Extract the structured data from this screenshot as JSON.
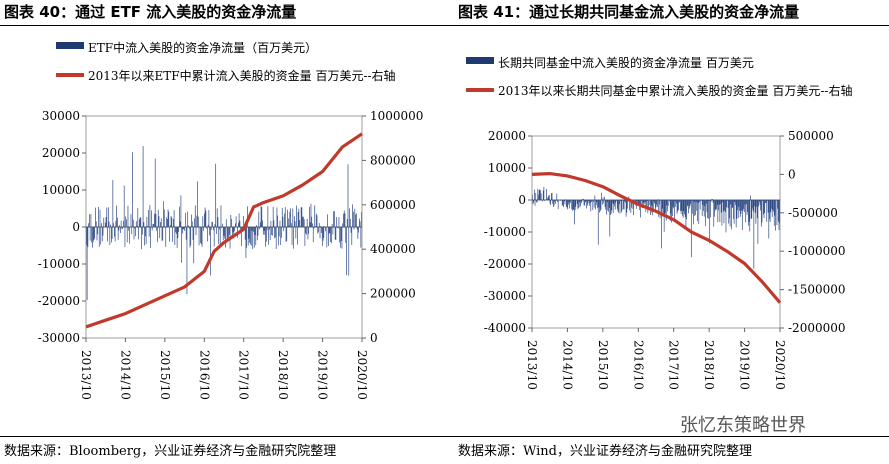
{
  "header": {
    "left_title": "图表 40：通过 ETF 流入美股的资金净流量",
    "right_title": "图表 41：通过长期共同基金流入美股的资金净流量"
  },
  "footer": {
    "left_source": "数据来源：Bloomberg，兴业证券经济与金融研究院整理",
    "right_source": "数据来源：Wind，兴业证券经济与金融研究院整理",
    "watermark": "张忆东策略世界"
  },
  "chart_data": [
    {
      "type": "bar+line",
      "legend": [
        {
          "label": "ETF中流入美股的资金净流量（百万美元）",
          "color": "#1f3a6e"
        },
        {
          "label": "2013年以来ETF中累计流入美股的资金量 百万美元--右轴",
          "color": "#c0392b"
        }
      ],
      "ylim_left": [
        -30000,
        30000
      ],
      "yticks_left": [
        "30000",
        "20000",
        "10000",
        "0",
        "-10000",
        "-20000",
        "-30000"
      ],
      "ylim_right": [
        0,
        1000000
      ],
      "yticks_right": [
        "1000000",
        "800000",
        "600000",
        "400000",
        "200000",
        "0"
      ],
      "xticks": [
        "2013/10",
        "2014/10",
        "2015/10",
        "2016/10",
        "2017/10",
        "2018/10",
        "2019/10",
        "2020/10"
      ],
      "x_range": [
        "2013/10",
        "2020/10"
      ],
      "cumulative_line": [
        {
          "x": "2013/10",
          "y": 50000
        },
        {
          "x": "2014/04",
          "y": 80000
        },
        {
          "x": "2014/10",
          "y": 110000
        },
        {
          "x": "2015/04",
          "y": 150000
        },
        {
          "x": "2015/10",
          "y": 190000
        },
        {
          "x": "2016/04",
          "y": 230000
        },
        {
          "x": "2016/10",
          "y": 300000
        },
        {
          "x": "2017/01",
          "y": 390000
        },
        {
          "x": "2017/04",
          "y": 430000
        },
        {
          "x": "2017/10",
          "y": 490000
        },
        {
          "x": "2018/01",
          "y": 590000
        },
        {
          "x": "2018/04",
          "y": 610000
        },
        {
          "x": "2018/10",
          "y": 640000
        },
        {
          "x": "2019/04",
          "y": 690000
        },
        {
          "x": "2019/10",
          "y": 750000
        },
        {
          "x": "2020/04",
          "y": 860000
        },
        {
          "x": "2020/10",
          "y": 920000
        }
      ],
      "flow_bars_note": "weekly net flows fluctuating roughly between -22000 and 26000"
    },
    {
      "type": "bar+line",
      "legend": [
        {
          "label": "长期共同基金中流入美股的资金净流量 百万美元",
          "color": "#1f3a6e"
        },
        {
          "label": "2013年以来长期共同基金中累计流入美股的资金量 百万美元--右轴",
          "color": "#c0392b"
        }
      ],
      "ylim_left": [
        -40000,
        20000
      ],
      "yticks_left": [
        "20000",
        "10000",
        "0",
        "-10000",
        "-20000",
        "-30000",
        "-40000"
      ],
      "ylim_right": [
        -2000000,
        500000
      ],
      "yticks_right": [
        "500000",
        "0",
        "-500000",
        "-1000000",
        "-1500000",
        "-2000000"
      ],
      "xticks": [
        "2013/10",
        "2014/10",
        "2015/10",
        "2016/10",
        "2017/10",
        "2018/10",
        "2019/10",
        "2020/10"
      ],
      "x_range": [
        "2013/10",
        "2020/10"
      ],
      "cumulative_line": [
        {
          "x": "2013/10",
          "y": 0
        },
        {
          "x": "2014/04",
          "y": 10000
        },
        {
          "x": "2014/10",
          "y": -20000
        },
        {
          "x": "2015/04",
          "y": -80000
        },
        {
          "x": "2015/10",
          "y": -160000
        },
        {
          "x": "2016/04",
          "y": -280000
        },
        {
          "x": "2016/10",
          "y": -390000
        },
        {
          "x": "2017/04",
          "y": -480000
        },
        {
          "x": "2017/10",
          "y": -590000
        },
        {
          "x": "2018/04",
          "y": -750000
        },
        {
          "x": "2018/10",
          "y": -860000
        },
        {
          "x": "2019/04",
          "y": -1000000
        },
        {
          "x": "2019/10",
          "y": -1160000
        },
        {
          "x": "2020/04",
          "y": -1400000
        },
        {
          "x": "2020/10",
          "y": -1670000
        }
      ],
      "flow_bars_note": "weekly net flows mostly negative, roughly between -22000 and 4000"
    }
  ]
}
